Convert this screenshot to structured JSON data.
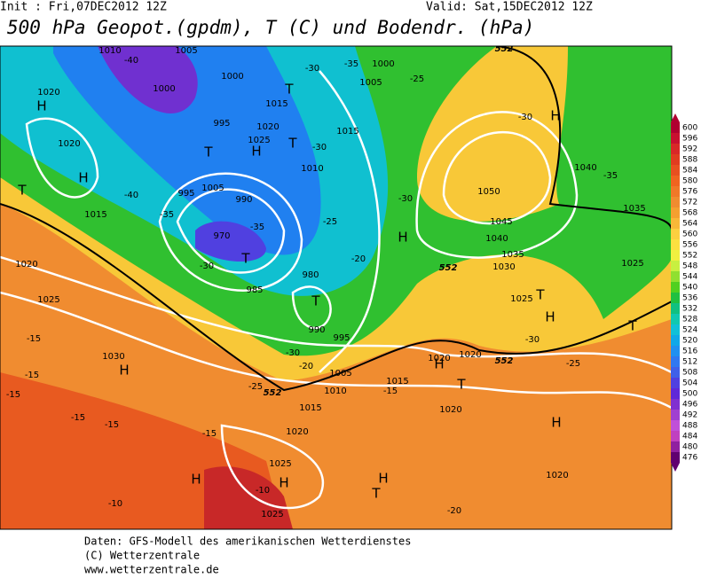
{
  "header": {
    "init": "Init : Fri,07DEC2012 12Z",
    "valid": "Valid: Sat,15DEC2012 12Z",
    "title": "500 hPa Geopot.(gpdm), T (C) und Bodendr. (hPa)"
  },
  "footer": [
    "Daten: GFS-Modell des amerikanischen Wetterdienstes",
    "(C) Wetterzentrale",
    "www.wetterzentrale.de"
  ],
  "map": {
    "labels": [
      "1010",
      "-40",
      "1005",
      "1020",
      "H",
      "1000",
      "1000",
      "-30",
      "-35",
      "1000",
      "T",
      "1015",
      "1005",
      "-25",
      "-30",
      "H",
      "1020",
      "H",
      "995",
      "1020",
      "1025",
      "H",
      "T",
      "T",
      "-30",
      "1015",
      "1010",
      "1040",
      "-35",
      "T",
      "-40",
      "995",
      "1005",
      "990",
      "-35",
      "1015",
      "1050",
      "-30",
      "-25",
      "1045",
      "1035",
      "H",
      "970",
      "T",
      "-35",
      "1040",
      "1035",
      "1030",
      "-20",
      "1020",
      "-30",
      "985",
      "980",
      "T",
      "1025",
      "T",
      "H",
      "1025",
      "1025",
      "-15",
      "995",
      "990",
      "-30",
      "1030",
      "H",
      "-15",
      "-30",
      "1020",
      "1020",
      "-25",
      "T",
      "H",
      "1005",
      "1015",
      "-20",
      "T",
      "-25",
      "1010",
      "-15",
      "-15",
      "1020",
      "1015",
      "-15",
      "-15",
      "H",
      "1020",
      "-15",
      "1025",
      "H",
      "H",
      "-10",
      "H",
      "T",
      "1020",
      "-10",
      "1025",
      "-20"
    ],
    "contour_labels": [
      "552",
      "552",
      "552",
      "552"
    ]
  },
  "colorbar": {
    "levels": [
      600,
      596,
      592,
      588,
      584,
      580,
      576,
      572,
      568,
      564,
      560,
      556,
      552,
      548,
      544,
      540,
      536,
      532,
      528,
      524,
      520,
      516,
      512,
      508,
      504,
      500,
      496,
      492,
      488,
      484,
      480,
      476
    ],
    "colors": [
      "#b00030",
      "#c81030",
      "#d82828",
      "#e03c20",
      "#e85020",
      "#f06420",
      "#f07828",
      "#f08c30",
      "#f4a030",
      "#f8b838",
      "#fcd040",
      "#fce040",
      "#f0f040",
      "#c8f040",
      "#90e030",
      "#50d020",
      "#20c040",
      "#10c080",
      "#10c8b0",
      "#10c0d8",
      "#10a8e8",
      "#2090f0",
      "#3078f0",
      "#4060e8",
      "#5040e0",
      "#6028d8",
      "#8030d0",
      "#a040d0",
      "#c050d8",
      "#c040c0",
      "#9020a0",
      "#600070"
    ]
  }
}
